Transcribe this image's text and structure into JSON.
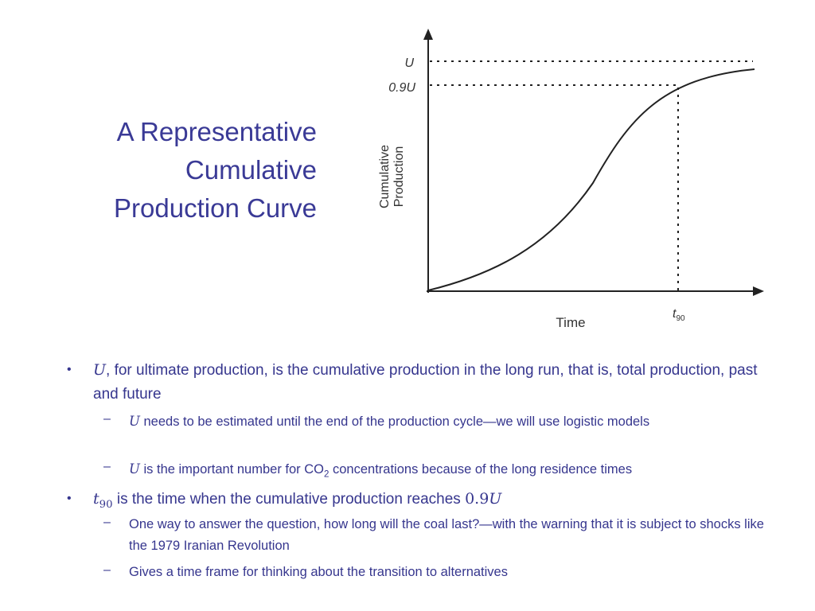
{
  "title": [
    "A Representative",
    "Cumulative",
    "Production Curve"
  ],
  "diagram": {
    "u_label": "U",
    "u90_label": [
      "0.9",
      "U"
    ],
    "y_axis_label": [
      "Cumulative",
      "Production"
    ],
    "x_axis_label": "Time",
    "t90_label": [
      "t",
      "90"
    ]
  },
  "bullets": [
    {
      "segments": [
        "U",
        ", for ultimate production, is the cumulative production in the long run, that is, total production, past and future"
      ],
      "sub": [
        [
          "U",
          " needs to be estimated until the end of the production cycle—we will use logistic models"
        ],
        [
          "U",
          " is the important number for CO",
          "2",
          " concentrations because of the long residence times"
        ]
      ]
    },
    {
      "segments": [
        "t",
        "90",
        " is the time when the cumulative production reaches ",
        "0.9",
        "U"
      ],
      "sub": [
        [
          "One way to answer the question, how long will the coal last?—with the warning that it is subject to shocks like the 1979 Iranian Revolution"
        ],
        [
          "Gives a time frame for thinking about the transition to alternatives"
        ]
      ]
    }
  ]
}
